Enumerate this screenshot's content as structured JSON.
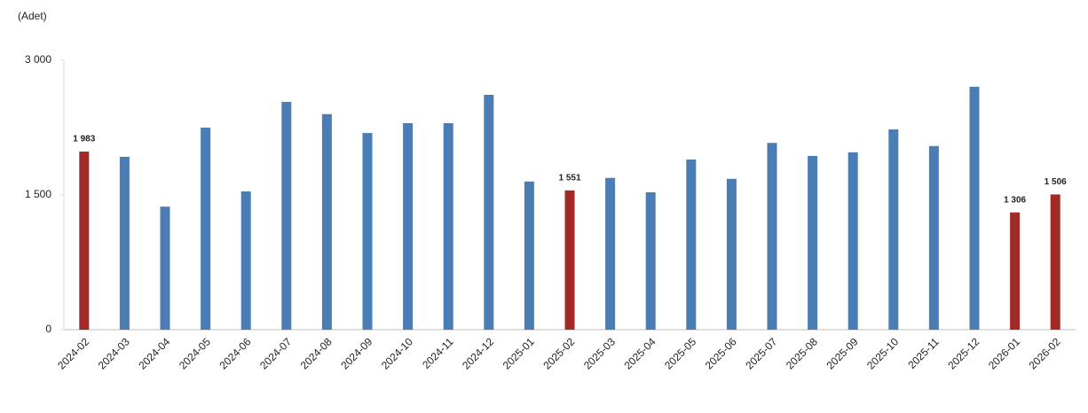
{
  "chart_data": {
    "type": "bar",
    "y_axis_label": "(Adet)",
    "categories": [
      "2024-02",
      "2024-03",
      "2024-04",
      "2024-05",
      "2024-06",
      "2024-07",
      "2024-08",
      "2024-09",
      "2024-10",
      "2024-11",
      "2024-12",
      "2025-01",
      "2025-02",
      "2025-03",
      "2025-04",
      "2025-05",
      "2025-06",
      "2025-07",
      "2025-08",
      "2025-09",
      "2025-10",
      "2025-11",
      "2025-12",
      "2026-01",
      "2026-02"
    ],
    "values": [
      1983,
      1925,
      1370,
      2250,
      1540,
      2537,
      2400,
      2190,
      2300,
      2300,
      2615,
      1650,
      1551,
      1690,
      1530,
      1895,
      1680,
      2080,
      1935,
      1975,
      2230,
      2045,
      2705,
      1306,
      1506
    ],
    "value_labels": [
      "1 983",
      null,
      null,
      null,
      null,
      null,
      null,
      null,
      null,
      null,
      null,
      null,
      "1 551",
      null,
      null,
      null,
      null,
      null,
      null,
      null,
      null,
      null,
      null,
      "1 306",
      "1 506"
    ],
    "colors": [
      "#a12a26",
      "#4a7db3",
      "#4a7db3",
      "#4a7db3",
      "#4a7db3",
      "#4a7db3",
      "#4a7db3",
      "#4a7db3",
      "#4a7db3",
      "#4a7db3",
      "#4a7db3",
      "#4a7db3",
      "#a12a26",
      "#4a7db3",
      "#4a7db3",
      "#4a7db3",
      "#4a7db3",
      "#4a7db3",
      "#4a7db3",
      "#4a7db3",
      "#4a7db3",
      "#4a7db3",
      "#4a7db3",
      "#a12a26",
      "#a12a26"
    ],
    "ylim": [
      0,
      3000
    ],
    "yticks": [
      0,
      {
        "value": 1500,
        "label": "1 500"
      },
      {
        "value": 3000,
        "label": "3 000"
      }
    ]
  }
}
